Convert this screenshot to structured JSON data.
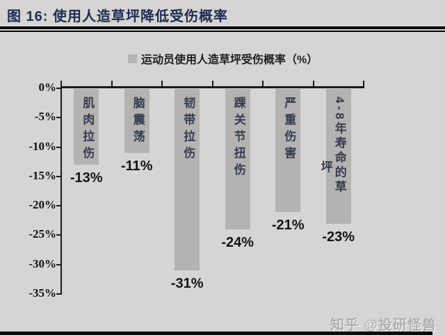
{
  "figure": {
    "title": "图 16: 使用人造草坪降低受伤概率",
    "watermark": "知乎 @投研怪兽"
  },
  "chart_data": {
    "type": "bar",
    "orientation": "vertical",
    "title": "图 16: 使用人造草坪降低受伤概率",
    "legend": "运动员使用人造草坪受伤概率（%）",
    "legend_position": "top",
    "categories": [
      "肌肉拉伤",
      "脑震荡",
      "韧带拉伤",
      "踝关节扭伤",
      "严重伤害",
      "4-8年寿命的草坪"
    ],
    "category_label_columns": [
      [
        "肌肉拉伤"
      ],
      [
        "脑震荡"
      ],
      [
        "韧带拉伤"
      ],
      [
        "踝关节扭伤"
      ],
      [
        "严重伤害"
      ],
      [
        "4-8年寿命的草",
        "坪"
      ]
    ],
    "values": [
      -13,
      -11,
      -31,
      -24,
      -21,
      -23
    ],
    "value_labels": [
      "-13%",
      "-11%",
      "-31%",
      "-24%",
      "-21%",
      "-23%"
    ],
    "xlabel": "",
    "ylabel": "",
    "ylim": [
      -35,
      0
    ],
    "y_ticks": [
      "0%",
      "-5%",
      "-10%",
      "-15%",
      "-20%",
      "-25%",
      "-30%",
      "-35%"
    ],
    "y_tick_values": [
      0,
      -5,
      -10,
      -15,
      -20,
      -25,
      -30,
      -35
    ],
    "grid": false,
    "colors": {
      "bar": "#b4b3b1",
      "background": "#d6d5d3",
      "title_text": "#1e2c52",
      "category_text": "#343b4f",
      "axis": "#1a1a1a",
      "value_text": "#141414",
      "watermark_text": "#b0afad",
      "bottom_bar": "#0c0c0c"
    }
  }
}
